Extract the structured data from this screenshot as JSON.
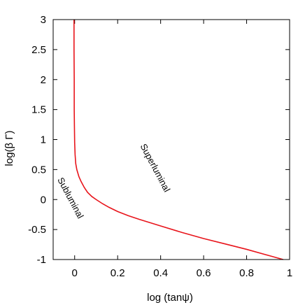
{
  "chart_data": {
    "type": "line",
    "xlabel": "log (tanψ)",
    "ylabel": "log(β Γ)",
    "xlim": [
      -0.1,
      1.0
    ],
    "ylim": [
      -1,
      3
    ],
    "x_ticks": [
      0,
      0.2,
      0.4,
      0.6,
      0.8,
      1
    ],
    "x_tick_labels": [
      "0",
      "0.2",
      "0.4",
      "0.6",
      "0.8",
      "1"
    ],
    "y_ticks": [
      3,
      2.5,
      2,
      1.5,
      1,
      0.5,
      0,
      -0.5,
      -1
    ],
    "y_tick_labels": [
      "3",
      "2.5",
      "2",
      "1.5",
      "1",
      "0.5",
      "0",
      "-0.5",
      "-1"
    ],
    "grid": false,
    "series": [
      {
        "color": "#e8141b",
        "x": [
          -0.003,
          -0.003,
          -0.002,
          -0.002,
          -0.001,
          0.0,
          0.002,
          0.005,
          0.01,
          0.02,
          0.03,
          0.045,
          0.06,
          0.08,
          0.1,
          0.13,
          0.16,
          0.2,
          0.25,
          0.3,
          0.4,
          0.5,
          0.6,
          0.7,
          0.8,
          0.9,
          0.97
        ],
        "y": [
          3.0,
          2.5,
          2.0,
          1.5,
          1.2,
          0.95,
          0.75,
          0.6,
          0.5,
          0.38,
          0.3,
          0.2,
          0.12,
          0.05,
          0.0,
          -0.07,
          -0.13,
          -0.2,
          -0.27,
          -0.33,
          -0.44,
          -0.55,
          -0.65,
          -0.74,
          -0.83,
          -0.93,
          -1.0
        ]
      }
    ],
    "annotations": [
      {
        "text": "Superluminal"
      },
      {
        "text": "Subluminal"
      }
    ]
  }
}
